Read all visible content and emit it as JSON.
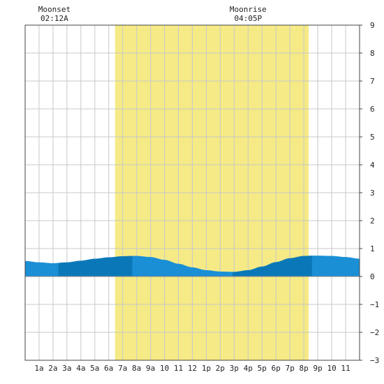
{
  "chart_data": {
    "type": "area",
    "x_unit": "hour of day",
    "xlim": [
      0,
      24
    ],
    "ylim": [
      -3,
      9
    ],
    "y_ticks": [
      -3,
      -2,
      -1,
      0,
      1,
      2,
      3,
      4,
      5,
      6,
      7,
      8,
      9
    ],
    "x_ticks": [
      {
        "x": 1,
        "label": "1a"
      },
      {
        "x": 2,
        "label": "2a"
      },
      {
        "x": 3,
        "label": "3a"
      },
      {
        "x": 4,
        "label": "4a"
      },
      {
        "x": 5,
        "label": "5a"
      },
      {
        "x": 6,
        "label": "6a"
      },
      {
        "x": 7,
        "label": "7a"
      },
      {
        "x": 8,
        "label": "8a"
      },
      {
        "x": 9,
        "label": "9a"
      },
      {
        "x": 10,
        "label": "10"
      },
      {
        "x": 11,
        "label": "11"
      },
      {
        "x": 12,
        "label": "12"
      },
      {
        "x": 13,
        "label": "1p"
      },
      {
        "x": 14,
        "label": "2p"
      },
      {
        "x": 15,
        "label": "3p"
      },
      {
        "x": 16,
        "label": "4p"
      },
      {
        "x": 17,
        "label": "5p"
      },
      {
        "x": 18,
        "label": "6p"
      },
      {
        "x": 19,
        "label": "7p"
      },
      {
        "x": 20,
        "label": "8p"
      },
      {
        "x": 21,
        "label": "9p"
      },
      {
        "x": 22,
        "label": "10"
      },
      {
        "x": 23,
        "label": "11"
      }
    ],
    "daylight": {
      "start": 6.45,
      "end": 20.35
    },
    "annotations": [
      {
        "x": 2.2,
        "title": "Moonset",
        "time": "02:12A"
      },
      {
        "x": 16.1,
        "title": "Moonrise",
        "time": "04:05P"
      }
    ],
    "tide": {
      "x": [
        0,
        1,
        2,
        3,
        4,
        5,
        6,
        7,
        7.7,
        8,
        9,
        10,
        11,
        12,
        13,
        14,
        14.9,
        15,
        16,
        17,
        18,
        19,
        20,
        20.6,
        21,
        22,
        23,
        24
      ],
      "y": [
        0.55,
        0.5,
        0.47,
        0.5,
        0.56,
        0.63,
        0.68,
        0.72,
        0.73,
        0.73,
        0.69,
        0.59,
        0.45,
        0.32,
        0.22,
        0.17,
        0.16,
        0.16,
        0.22,
        0.35,
        0.51,
        0.65,
        0.73,
        0.74,
        0.74,
        0.73,
        0.69,
        0.63
      ]
    },
    "bands": [
      {
        "from": 0,
        "to": 2.4,
        "color": "#1a8fd6"
      },
      {
        "from": 2.4,
        "to": 7.7,
        "color": "#0a78b8"
      },
      {
        "from": 7.7,
        "to": 14.9,
        "color": "#1a8fd6"
      },
      {
        "from": 14.9,
        "to": 20.6,
        "color": "#0a78b8"
      },
      {
        "from": 20.6,
        "to": 24,
        "color": "#1a8fd6"
      }
    ],
    "colors": {
      "daylight": "#f5ea85",
      "grid": "#c8c8c8",
      "frame": "#444444",
      "zero_line": "#888888"
    }
  }
}
